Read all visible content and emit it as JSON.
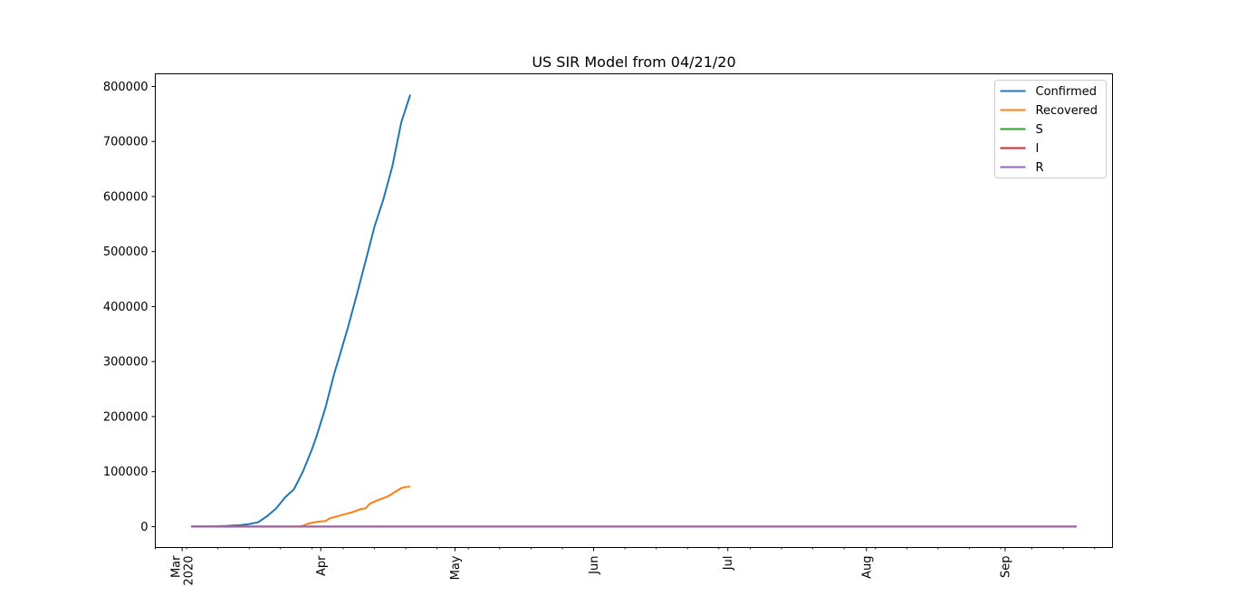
{
  "chart_data": {
    "type": "line",
    "title": "US SIR Model from 04/21/20",
    "xlabel": "",
    "ylabel": "",
    "x_axis_type": "date",
    "xlim": [
      "2020-02-24",
      "2020-09-25"
    ],
    "ylim": [
      -38000,
      823000
    ],
    "grid": false,
    "legend_position": "top-right",
    "y_ticks": [
      0,
      100000,
      200000,
      300000,
      400000,
      500000,
      600000,
      700000,
      800000
    ],
    "y_tick_labels": [
      "0",
      "100000",
      "200000",
      "300000",
      "400000",
      "500000",
      "600000",
      "700000",
      "800000"
    ],
    "x_major_ticks": [
      {
        "date": "2020-03-01",
        "label": [
          "Mar",
          "2020"
        ]
      },
      {
        "date": "2020-04-01",
        "label": [
          "Apr"
        ]
      },
      {
        "date": "2020-05-01",
        "label": [
          "May"
        ]
      },
      {
        "date": "2020-06-01",
        "label": [
          "Jun"
        ]
      },
      {
        "date": "2020-07-01",
        "label": [
          "Jul"
        ]
      },
      {
        "date": "2020-08-01",
        "label": [
          "Aug"
        ]
      },
      {
        "date": "2020-09-01",
        "label": [
          "Sep"
        ]
      }
    ],
    "series": [
      {
        "name": "Confirmed",
        "color": "#1f77b4",
        "points": [
          [
            "2020-03-03",
            100
          ],
          [
            "2020-03-08",
            500
          ],
          [
            "2020-03-11",
            1300
          ],
          [
            "2020-03-14",
            2700
          ],
          [
            "2020-03-16",
            4600
          ],
          [
            "2020-03-18",
            8000
          ],
          [
            "2020-03-20",
            19000
          ],
          [
            "2020-03-22",
            33000
          ],
          [
            "2020-03-24",
            53000
          ],
          [
            "2020-03-26",
            68000
          ],
          [
            "2020-03-28",
            100000
          ],
          [
            "2020-03-30",
            140000
          ],
          [
            "2020-03-31",
            163000
          ],
          [
            "2020-04-02",
            215000
          ],
          [
            "2020-04-04",
            278000
          ],
          [
            "2020-04-05",
            305000
          ],
          [
            "2020-04-07",
            360000
          ],
          [
            "2020-04-09",
            420000
          ],
          [
            "2020-04-11",
            482000
          ],
          [
            "2020-04-13",
            545000
          ],
          [
            "2020-04-15",
            595000
          ],
          [
            "2020-04-17",
            655000
          ],
          [
            "2020-04-19",
            735000
          ],
          [
            "2020-04-21",
            785000
          ]
        ]
      },
      {
        "name": "Recovered",
        "color": "#ff7f0e",
        "points": [
          [
            "2020-03-03",
            0
          ],
          [
            "2020-03-27",
            0
          ],
          [
            "2020-03-28",
            1500
          ],
          [
            "2020-03-29",
            5000
          ],
          [
            "2020-03-30",
            7000
          ],
          [
            "2020-03-31",
            8500
          ],
          [
            "2020-04-01",
            9500
          ],
          [
            "2020-04-02",
            10000
          ],
          [
            "2020-04-03",
            15000
          ],
          [
            "2020-04-05",
            19500
          ],
          [
            "2020-04-07",
            24000
          ],
          [
            "2020-04-08",
            26000
          ],
          [
            "2020-04-10",
            32000
          ],
          [
            "2020-04-11",
            33000
          ],
          [
            "2020-04-12",
            42000
          ],
          [
            "2020-04-14",
            49000
          ],
          [
            "2020-04-16",
            55000
          ],
          [
            "2020-04-17",
            60000
          ],
          [
            "2020-04-19",
            70000
          ],
          [
            "2020-04-20",
            72000
          ],
          [
            "2020-04-21",
            73000
          ]
        ]
      },
      {
        "name": "S",
        "color": "#2ca02c",
        "points": [
          [
            "2020-03-03",
            0
          ],
          [
            "2020-09-17",
            0
          ]
        ]
      },
      {
        "name": "I",
        "color": "#d62728",
        "points": [
          [
            "2020-03-03",
            0
          ],
          [
            "2020-09-17",
            0
          ]
        ]
      },
      {
        "name": "R",
        "color": "#9467bd",
        "points": [
          [
            "2020-03-03",
            0
          ],
          [
            "2020-09-17",
            0
          ]
        ]
      }
    ]
  }
}
